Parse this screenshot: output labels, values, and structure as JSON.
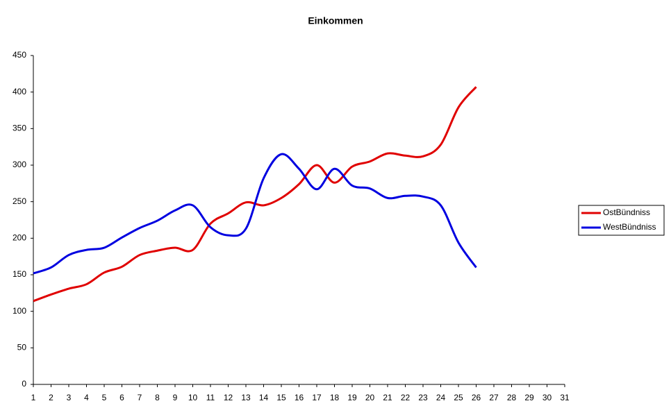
{
  "chart_data": {
    "type": "line",
    "title": "Einkommen",
    "x": [
      1,
      2,
      3,
      4,
      5,
      6,
      7,
      8,
      9,
      10,
      11,
      12,
      13,
      14,
      15,
      16,
      17,
      18,
      19,
      20,
      21,
      22,
      23,
      24,
      25,
      26
    ],
    "series": [
      {
        "name": "OstBündniss",
        "color": "#e00000",
        "values": [
          114,
          123,
          131,
          137,
          153,
          161,
          177,
          183,
          187,
          184,
          220,
          234,
          249,
          245,
          255,
          274,
          300,
          276,
          298,
          305,
          316,
          313,
          312,
          328,
          379,
          407
        ]
      },
      {
        "name": "WestBündniss",
        "color": "#0000e0",
        "values": [
          152,
          160,
          177,
          184,
          187,
          201,
          214,
          224,
          238,
          245,
          215,
          204,
          213,
          282,
          315,
          295,
          267,
          295,
          272,
          268,
          255,
          258,
          257,
          245,
          194,
          160
        ]
      }
    ],
    "xlim": [
      1,
      31
    ],
    "xticks": [
      1,
      2,
      3,
      4,
      5,
      6,
      7,
      8,
      9,
      10,
      11,
      12,
      13,
      14,
      15,
      16,
      17,
      18,
      19,
      20,
      21,
      22,
      23,
      24,
      25,
      26,
      27,
      28,
      29,
      30,
      31
    ],
    "ylim": [
      0,
      450
    ],
    "yticks": [
      0,
      50,
      100,
      150,
      200,
      250,
      300,
      350,
      400,
      450
    ],
    "grid": false,
    "legend": "right"
  }
}
